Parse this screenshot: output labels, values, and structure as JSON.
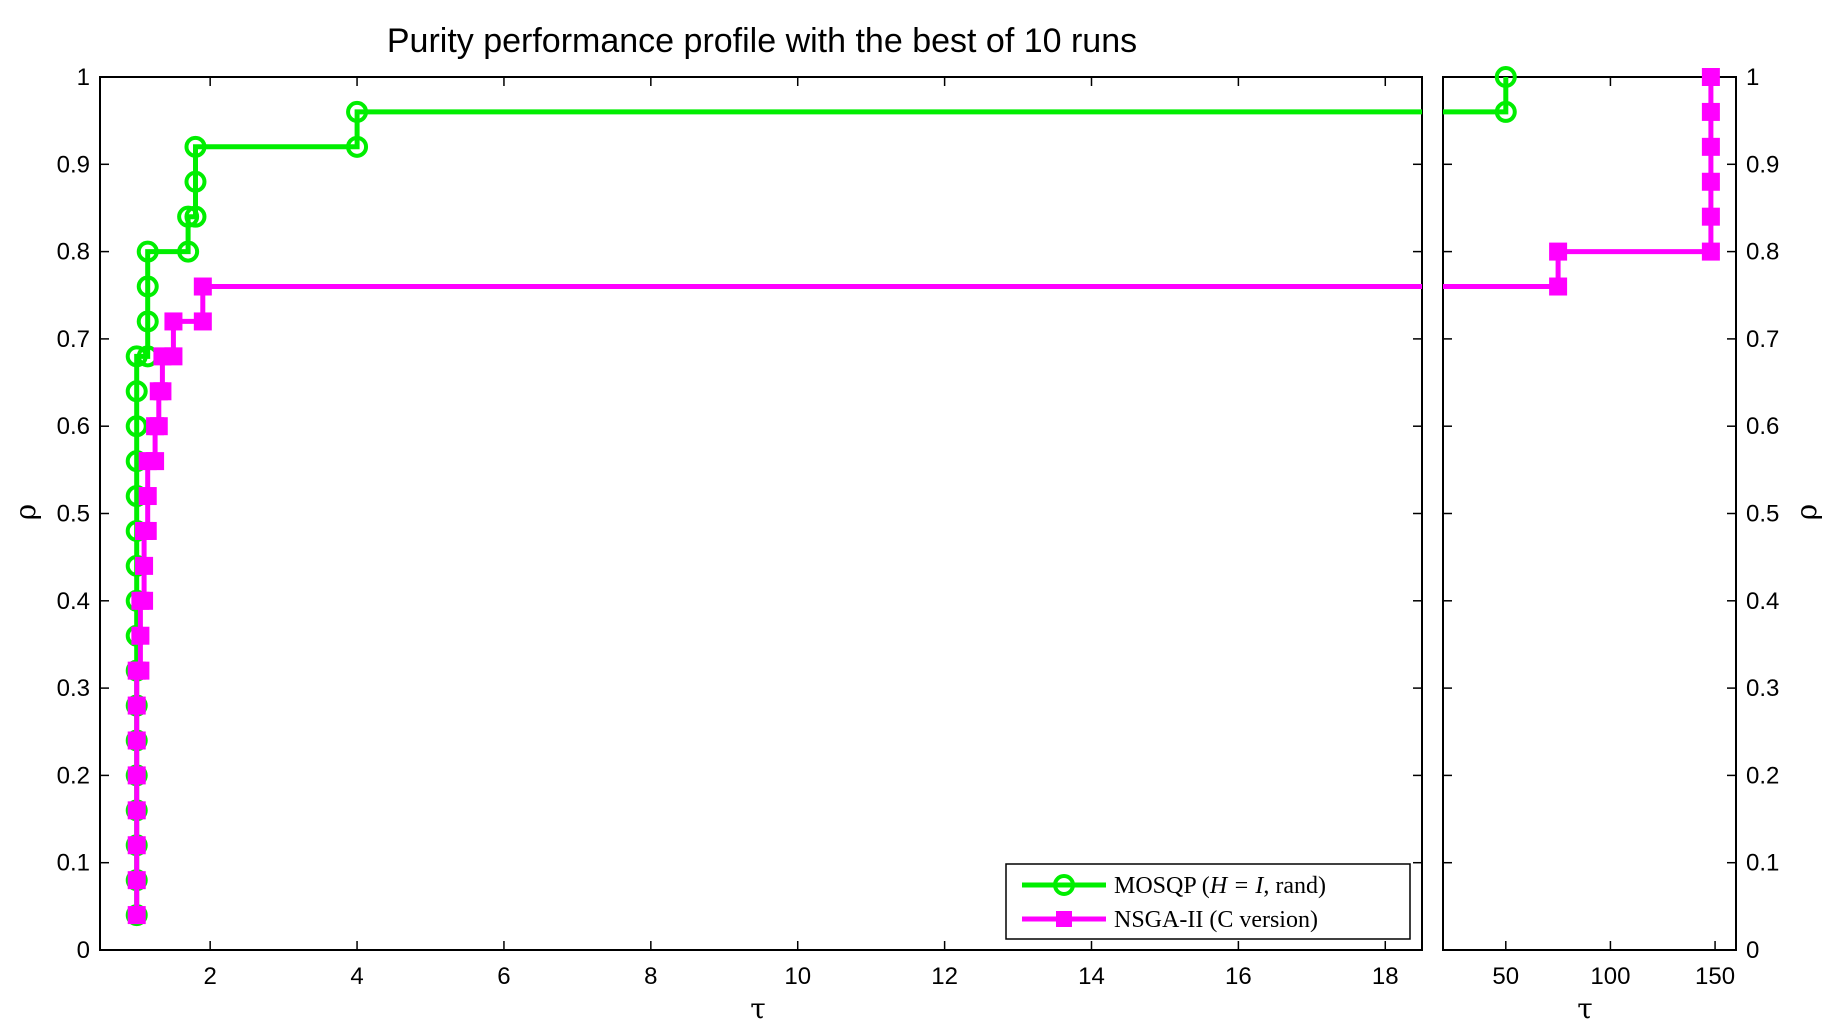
{
  "chart_data": {
    "type": "line",
    "title": "Purity performance profile with the best of 10 runs",
    "xlabel": "τ",
    "ylabel": "ρ",
    "ylim": [
      0,
      1
    ],
    "yticks": [
      "0",
      "0.1",
      "0.2",
      "0.3",
      "0.4",
      "0.5",
      "0.6",
      "0.7",
      "0.8",
      "0.9",
      "1"
    ],
    "grid": false,
    "legend_position": "bottom-right",
    "panels": [
      {
        "xlim": [
          0.5,
          18.5
        ],
        "xticks": [
          "2",
          "4",
          "6",
          "8",
          "10",
          "12",
          "14",
          "16",
          "18"
        ],
        "xtick_values": [
          2,
          4,
          6,
          8,
          10,
          12,
          14,
          16,
          18
        ]
      },
      {
        "xlim": [
          20,
          160
        ],
        "xticks": [
          "50",
          "100",
          "150"
        ],
        "xtick_values": [
          50,
          100,
          150
        ]
      }
    ],
    "series": [
      {
        "name": "MOSQP (H = I, rand)",
        "color": "#00ee00",
        "marker": "circle",
        "points": [
          [
            1.0,
            0.04
          ],
          [
            1.0,
            0.08
          ],
          [
            1.0,
            0.12
          ],
          [
            1.0,
            0.16
          ],
          [
            1.0,
            0.2
          ],
          [
            1.0,
            0.24
          ],
          [
            1.0,
            0.28
          ],
          [
            1.0,
            0.32
          ],
          [
            1.0,
            0.36
          ],
          [
            1.0,
            0.4
          ],
          [
            1.0,
            0.44
          ],
          [
            1.0,
            0.48
          ],
          [
            1.0,
            0.52
          ],
          [
            1.0,
            0.56
          ],
          [
            1.0,
            0.6
          ],
          [
            1.0,
            0.64
          ],
          [
            1.0,
            0.68
          ],
          [
            1.15,
            0.68
          ],
          [
            1.15,
            0.72
          ],
          [
            1.15,
            0.76
          ],
          [
            1.15,
            0.8
          ],
          [
            1.7,
            0.8
          ],
          [
            1.7,
            0.84
          ],
          [
            1.8,
            0.84
          ],
          [
            1.8,
            0.88
          ],
          [
            1.8,
            0.92
          ],
          [
            4.0,
            0.92
          ],
          [
            4.0,
            0.96
          ],
          [
            50,
            0.96
          ],
          [
            50,
            1.0
          ]
        ]
      },
      {
        "name": "NSGA-II (C version)",
        "color": "#ff00ff",
        "marker": "square",
        "points": [
          [
            1.0,
            0.04
          ],
          [
            1.0,
            0.08
          ],
          [
            1.0,
            0.12
          ],
          [
            1.0,
            0.16
          ],
          [
            1.0,
            0.2
          ],
          [
            1.0,
            0.24
          ],
          [
            1.0,
            0.28
          ],
          [
            1.0,
            0.32
          ],
          [
            1.05,
            0.32
          ],
          [
            1.05,
            0.36
          ],
          [
            1.05,
            0.4
          ],
          [
            1.1,
            0.4
          ],
          [
            1.1,
            0.44
          ],
          [
            1.1,
            0.48
          ],
          [
            1.15,
            0.48
          ],
          [
            1.15,
            0.52
          ],
          [
            1.15,
            0.56
          ],
          [
            1.25,
            0.56
          ],
          [
            1.25,
            0.6
          ],
          [
            1.3,
            0.6
          ],
          [
            1.3,
            0.64
          ],
          [
            1.35,
            0.64
          ],
          [
            1.35,
            0.68
          ],
          [
            1.5,
            0.68
          ],
          [
            1.5,
            0.72
          ],
          [
            1.9,
            0.72
          ],
          [
            1.9,
            0.76
          ],
          [
            75,
            0.76
          ],
          [
            75,
            0.8
          ],
          [
            148,
            0.8
          ],
          [
            148,
            0.84
          ],
          [
            148,
            0.88
          ],
          [
            148,
            0.92
          ],
          [
            148,
            0.96
          ],
          [
            148,
            1.0
          ]
        ]
      }
    ],
    "legend": [
      {
        "label_main": "MOSQP (",
        "label_italic": "H = I",
        "label_end": ", rand)"
      },
      {
        "label_main": "NSGA-II (C version)",
        "label_italic": "",
        "label_end": ""
      }
    ]
  }
}
